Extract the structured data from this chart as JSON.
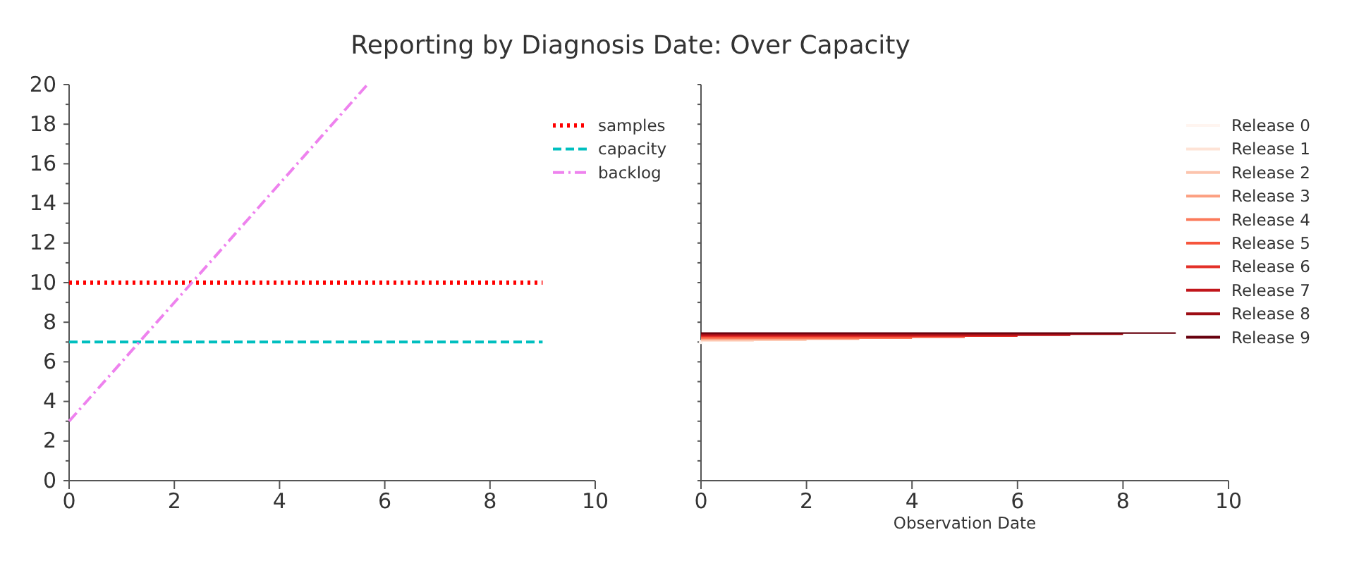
{
  "chart_data": [
    {
      "type": "line",
      "title": "Reporting by Diagnosis Date: Over Capacity",
      "xlim": [
        0,
        10
      ],
      "ylim": [
        0,
        20
      ],
      "xticks": [
        0,
        2,
        4,
        6,
        8,
        10
      ],
      "yticks": [
        0,
        {
          "value": 1,
          "label": null
        },
        2,
        {
          "value": 3,
          "label": null
        },
        4,
        {
          "value": 5,
          "label": null
        },
        6,
        {
          "value": 7,
          "label": null
        },
        8,
        {
          "value": 9,
          "label": null
        },
        10,
        {
          "value": 11,
          "label": null
        },
        12,
        {
          "value": 13,
          "label": null
        },
        14,
        {
          "value": 15,
          "label": null
        },
        16,
        {
          "value": 17,
          "label": null
        },
        18,
        {
          "value": 19,
          "label": null
        },
        20
      ],
      "legend": "top right",
      "series": [
        {
          "name": "samples",
          "color": "#ff0000",
          "line_style": "dotted",
          "x": [
            0,
            9
          ],
          "values": [
            10,
            10
          ]
        },
        {
          "name": "capacity",
          "color": "#00bfbf",
          "line_style": "dashed",
          "x": [
            0,
            9
          ],
          "values": [
            7,
            7
          ]
        },
        {
          "name": "backlog",
          "color": "#ee82ee",
          "line_style": "dashdot",
          "x": [
            0,
            5.67
          ],
          "values": [
            3,
            20
          ]
        }
      ]
    },
    {
      "type": "line",
      "xlabel": "Observation Date",
      "xlim": [
        0,
        10
      ],
      "ylim": [
        0,
        20
      ],
      "xticks": [
        0,
        2,
        4,
        6,
        8,
        10
      ],
      "yticks": [
        {
          "value": 0,
          "label": null
        },
        {
          "value": 1,
          "label": null
        },
        {
          "value": 2,
          "label": null
        },
        {
          "value": 3,
          "label": null
        },
        {
          "value": 4,
          "label": null
        },
        {
          "value": 5,
          "label": null
        },
        {
          "value": 6,
          "label": null
        },
        {
          "value": 7,
          "label": null
        },
        {
          "value": 8,
          "label": null
        },
        {
          "value": 9,
          "label": null
        },
        {
          "value": 10,
          "label": null
        },
        {
          "value": 11,
          "label": null
        },
        {
          "value": 12,
          "label": null
        },
        {
          "value": 13,
          "label": null
        },
        {
          "value": 14,
          "label": null
        },
        {
          "value": 15,
          "label": null
        },
        {
          "value": 16,
          "label": null
        },
        {
          "value": 17,
          "label": null
        },
        {
          "value": 18,
          "label": null
        },
        {
          "value": 19,
          "label": null
        },
        {
          "value": 20,
          "label": null
        }
      ],
      "tick_labels": "x",
      "legend": "right",
      "line_style": "solid",
      "series": [
        {
          "name": "Release 0",
          "color": "#fff5f0",
          "marker": "circle",
          "x": [
            0
          ],
          "values": [
            7.0
          ]
        },
        {
          "name": "Release 1",
          "color": "#fee3d6",
          "x": [
            0,
            1
          ],
          "values": [
            7.05,
            7.05
          ]
        },
        {
          "name": "Release 2",
          "color": "#fcc4ad",
          "x": [
            0,
            1,
            2
          ],
          "values": [
            7.1,
            7.1,
            7.1
          ]
        },
        {
          "name": "Release 3",
          "color": "#fc9f81",
          "x": [
            0,
            1,
            2,
            3
          ],
          "values": [
            7.15,
            7.15,
            7.15,
            7.15
          ]
        },
        {
          "name": "Release 4",
          "color": "#fb7a5a",
          "x": [
            0,
            1,
            2,
            3,
            4
          ],
          "values": [
            7.2,
            7.2,
            7.2,
            7.2,
            7.2
          ]
        },
        {
          "name": "Release 5",
          "color": "#f6553c",
          "x": [
            0,
            1,
            2,
            3,
            4,
            5
          ],
          "values": [
            7.25,
            7.25,
            7.25,
            7.25,
            7.25,
            7.25
          ]
        },
        {
          "name": "Release 6",
          "color": "#e32f27",
          "x": [
            0,
            1,
            2,
            3,
            4,
            5,
            6
          ],
          "values": [
            7.3,
            7.3,
            7.3,
            7.3,
            7.3,
            7.3,
            7.3
          ]
        },
        {
          "name": "Release 7",
          "color": "#c1151b",
          "x": [
            0,
            1,
            2,
            3,
            4,
            5,
            6,
            7
          ],
          "values": [
            7.35,
            7.35,
            7.35,
            7.35,
            7.35,
            7.35,
            7.35,
            7.35
          ]
        },
        {
          "name": "Release 8",
          "color": "#9d0d14",
          "x": [
            0,
            1,
            2,
            3,
            4,
            5,
            6,
            7,
            8
          ],
          "values": [
            7.4,
            7.4,
            7.4,
            7.4,
            7.4,
            7.4,
            7.4,
            7.4,
            7.4
          ]
        },
        {
          "name": "Release 9",
          "color": "#67000d",
          "x": [
            0,
            1,
            2,
            3,
            4,
            5,
            6,
            7,
            8,
            9
          ],
          "values": [
            7.45,
            7.45,
            7.45,
            7.45,
            7.45,
            7.45,
            7.45,
            7.45,
            7.45,
            7.45
          ]
        }
      ]
    }
  ]
}
